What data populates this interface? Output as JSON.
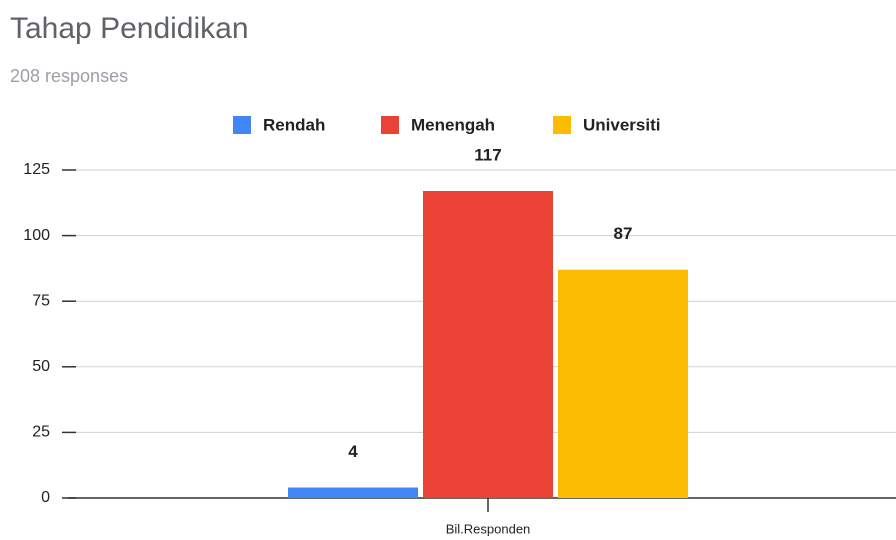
{
  "chart_data": {
    "type": "bar",
    "title": "Tahap Pendidikan",
    "subtitle": "208 responses",
    "categories": [
      "Bil.Responden"
    ],
    "series": [
      {
        "name": "Rendah",
        "color": "#4285f4",
        "values": [
          4
        ]
      },
      {
        "name": "Menengah",
        "color": "#ea4335",
        "values": [
          117
        ]
      },
      {
        "name": "Universiti",
        "color": "#fbbc04",
        "values": [
          87
        ]
      }
    ],
    "ylim": [
      0,
      125
    ],
    "yticks": [
      0,
      25,
      50,
      75,
      100,
      125
    ],
    "grid": true,
    "legend": "top"
  }
}
